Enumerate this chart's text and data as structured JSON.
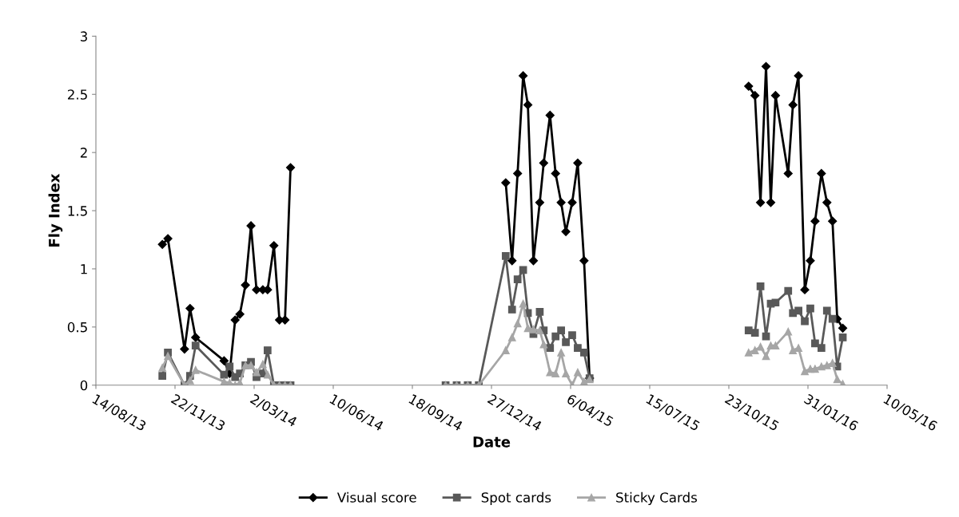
{
  "chart_data": {
    "type": "line",
    "xlabel": "Date",
    "ylabel": "Fly Index",
    "x": [
      "2013-11-06",
      "2013-11-13",
      "2013-12-04",
      "2013-12-11",
      "2013-12-18",
      "2014-01-23",
      "2014-01-30",
      "2014-02-06",
      "2014-02-12",
      "2014-02-19",
      "2014-02-26",
      "2014-03-05",
      "2014-03-13",
      "2014-03-19",
      "2014-03-27",
      "2014-04-03",
      "2014-04-10",
      "2014-04-17",
      "2014-07-01",
      "2014-10-30",
      "2014-11-13",
      "2014-11-27",
      "2014-12-11",
      "2015-01-14",
      "2015-01-22",
      "2015-01-29",
      "2015-02-05",
      "2015-02-11",
      "2015-02-18",
      "2015-02-26",
      "2015-03-03",
      "2015-03-11",
      "2015-03-18",
      "2015-03-25",
      "2015-03-31",
      "2015-04-08",
      "2015-04-15",
      "2015-04-23",
      "2015-04-30",
      "2015-07-15",
      "2015-11-17",
      "2015-11-25",
      "2015-12-02",
      "2015-12-09",
      "2015-12-15",
      "2015-12-21",
      "2016-01-06",
      "2016-01-12",
      "2016-01-19",
      "2016-01-27",
      "2016-02-03",
      "2016-02-09",
      "2016-02-17",
      "2016-02-24",
      "2016-03-02",
      "2016-03-08",
      "2016-03-15"
    ],
    "series": [
      {
        "name": "Visual score",
        "color": "#000000",
        "marker": "diamond",
        "values": [
          1.21,
          1.26,
          0.31,
          0.66,
          0.41,
          0.21,
          0.1,
          0.56,
          0.61,
          0.86,
          1.37,
          0.82,
          0.82,
          0.82,
          1.2,
          0.56,
          0.56,
          1.87,
          null,
          null,
          null,
          null,
          null,
          1.74,
          1.07,
          1.82,
          2.66,
          2.41,
          1.07,
          1.57,
          1.91,
          2.32,
          1.82,
          1.57,
          1.32,
          1.57,
          1.91,
          1.07,
          0.06,
          null,
          2.57,
          2.49,
          1.57,
          2.74,
          1.57,
          2.49,
          1.82,
          2.41,
          2.66,
          0.82,
          1.07,
          1.41,
          1.82,
          1.57,
          1.41,
          0.57,
          0.49
        ]
      },
      {
        "name": "Spot cards",
        "color": "#595959",
        "marker": "square",
        "values": [
          0.08,
          0.28,
          0,
          0.08,
          0.34,
          0.09,
          0.16,
          0.07,
          0.1,
          0.17,
          0.2,
          0.07,
          0.1,
          0.3,
          0,
          0,
          0,
          0,
          null,
          0,
          0,
          0,
          0,
          1.11,
          0.65,
          0.91,
          0.99,
          0.62,
          0.44,
          0.63,
          0.47,
          0.32,
          0.42,
          0.47,
          0.37,
          0.43,
          0.32,
          0.28,
          0.06,
          null,
          0.47,
          0.45,
          0.85,
          0.42,
          0.7,
          0.71,
          0.81,
          0.62,
          0.64,
          0.55,
          0.66,
          0.36,
          0.32,
          0.64,
          0.57,
          0.16,
          0.41
        ]
      },
      {
        "name": "Sticky Cards",
        "color": "#a6a6a6",
        "marker": "triangle",
        "values": [
          0.15,
          0.25,
          0,
          0.04,
          0.13,
          0.03,
          0.02,
          0,
          0.02,
          0.17,
          0.17,
          0.11,
          0.18,
          0.09,
          0,
          0,
          0,
          0,
          null,
          0,
          0,
          0,
          0,
          0.3,
          0.41,
          0.53,
          0.7,
          0.49,
          0.48,
          0.47,
          0.35,
          0.11,
          0.1,
          0.28,
          0.1,
          0,
          0.11,
          0.03,
          0.05,
          null,
          0.28,
          0.3,
          0.33,
          0.25,
          0.34,
          0.34,
          0.46,
          0.3,
          0.32,
          0.12,
          0.14,
          0.14,
          0.16,
          0.17,
          0.19,
          0.05,
          0.01
        ]
      }
    ],
    "xlim": [
      "2013-08-14",
      "2016-05-10"
    ],
    "xticks": [
      {
        "value": "2013-08-14",
        "label": "14/08/13"
      },
      {
        "value": "2013-11-22",
        "label": "22/11/13"
      },
      {
        "value": "2014-03-02",
        "label": "2/03/14"
      },
      {
        "value": "2014-06-10",
        "label": "10/06/14"
      },
      {
        "value": "2014-09-18",
        "label": "18/09/14"
      },
      {
        "value": "2014-12-27",
        "label": "27/12/14"
      },
      {
        "value": "2015-04-06",
        "label": "6/04/15"
      },
      {
        "value": "2015-07-15",
        "label": "15/07/15"
      },
      {
        "value": "2015-10-23",
        "label": "23/10/15"
      },
      {
        "value": "2016-01-31",
        "label": "31/01/16"
      },
      {
        "value": "2016-05-10",
        "label": "10/05/16"
      }
    ],
    "ylim": [
      0,
      3
    ],
    "yticks": [
      0,
      0.5,
      1,
      1.5,
      2,
      2.5,
      3
    ],
    "grid": false,
    "legend": "bottom"
  }
}
